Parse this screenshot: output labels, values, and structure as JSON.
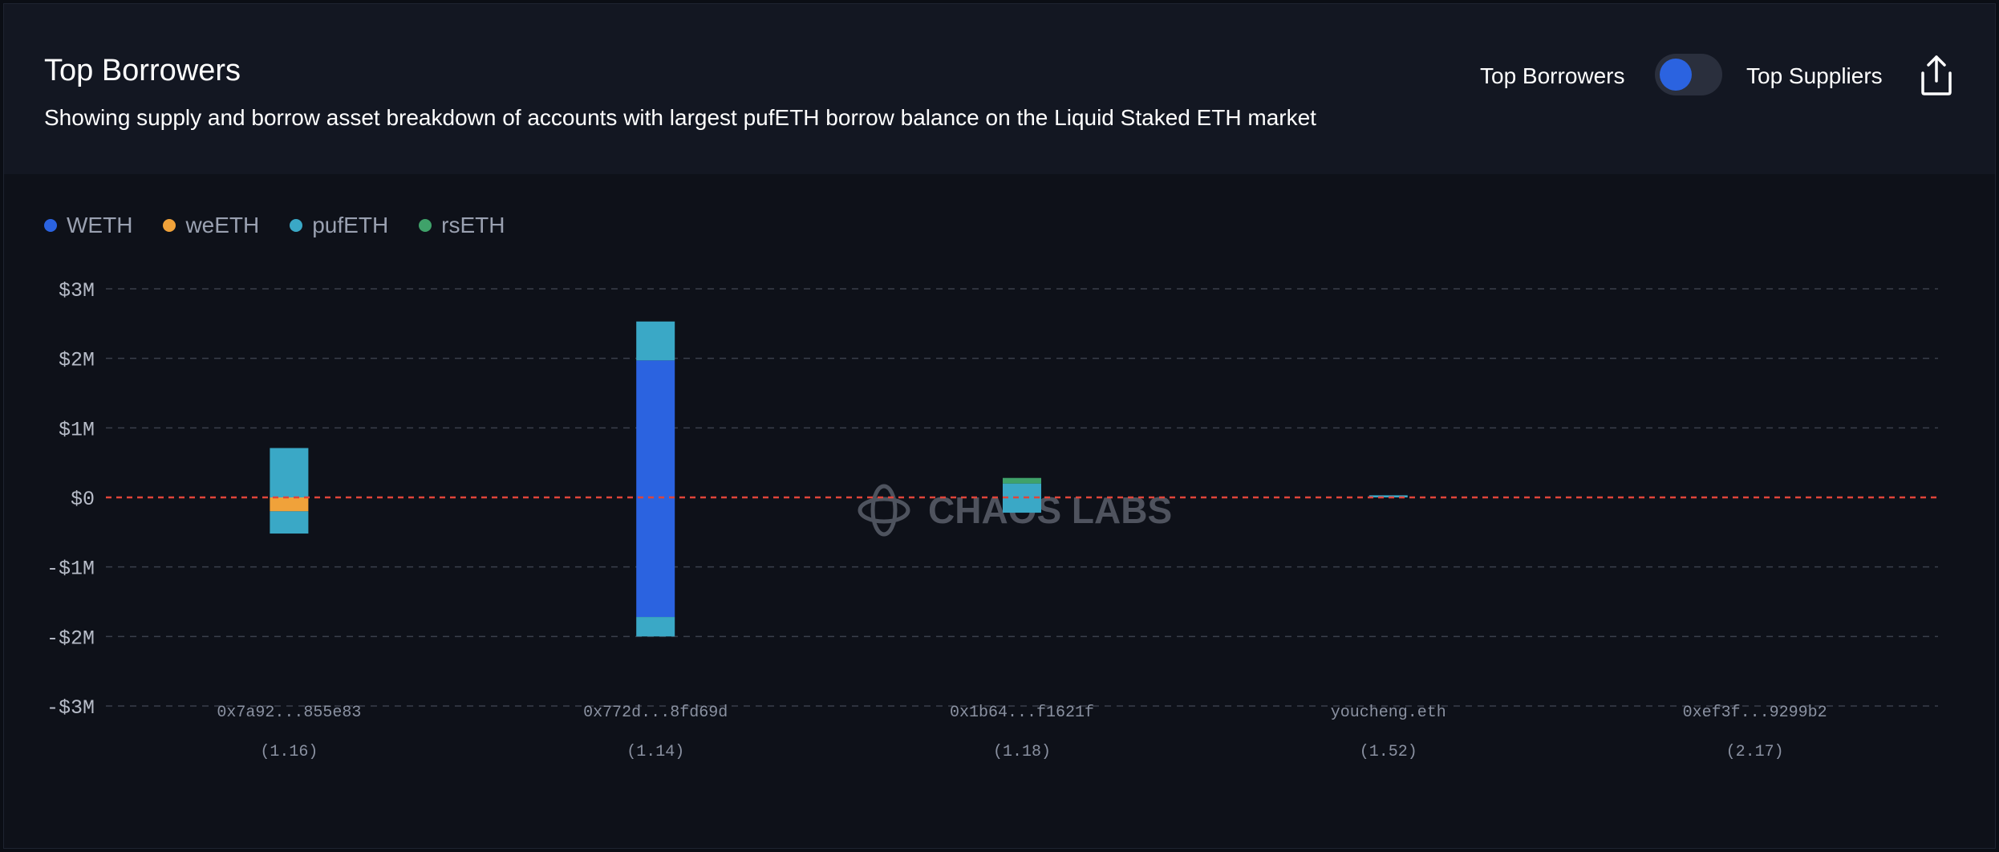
{
  "header": {
    "title": "Top Borrowers",
    "subtitle": "Showing supply and borrow asset breakdown of accounts with largest pufETH borrow balance on the Liquid Staked ETH market",
    "toggle": {
      "left_label": "Top Borrowers",
      "right_label": "Top Suppliers",
      "active": "Top Borrowers"
    },
    "share_icon": "share-icon"
  },
  "watermark": "CHAOS LABS",
  "chart_data": {
    "type": "bar",
    "stacked": true,
    "title": "",
    "xlabel": "",
    "ylabel": "",
    "ylim": [
      -3000000,
      3000000
    ],
    "y_ticks": [
      {
        "value": 3000000,
        "label": "$3M"
      },
      {
        "value": 2000000,
        "label": "$2M"
      },
      {
        "value": 1000000,
        "label": "$1M"
      },
      {
        "value": 0,
        "label": "$0"
      },
      {
        "value": -1000000,
        "label": "-$1M"
      },
      {
        "value": -2000000,
        "label": "-$2M"
      },
      {
        "value": -3000000,
        "label": "-$3M"
      }
    ],
    "grid": true,
    "zero_line": {
      "color": "#e0443a",
      "style": "dashed"
    },
    "legend_position": "top-left",
    "categories": [
      "0x7a92...855e83",
      "0x772d...8fd69d",
      "0x1b64...f1621f",
      "youcheng.eth",
      "0xef3f...9299b2"
    ],
    "category_sublabels": [
      "(1.16)",
      "(1.14)",
      "(1.18)",
      "(1.52)",
      "(2.17)"
    ],
    "series": [
      {
        "name": "WETH",
        "color": "#2b63e0",
        "values": [
          0,
          1970000,
          0,
          0,
          0
        ],
        "borrow_values": [
          0,
          -1720000,
          0,
          0,
          0
        ]
      },
      {
        "name": "weETH",
        "color": "#f0a23a",
        "values": [
          0,
          0,
          0,
          0,
          0
        ],
        "borrow_values": [
          -200000,
          0,
          0,
          0,
          0
        ]
      },
      {
        "name": "pufETH",
        "color": "#3aa8c6",
        "values": [
          710000,
          560000,
          200000,
          30000,
          0
        ],
        "borrow_values": [
          -320000,
          -280000,
          -220000,
          0,
          0
        ]
      },
      {
        "name": "rsETH",
        "color": "#3fa26a",
        "values": [
          0,
          0,
          80000,
          0,
          0
        ],
        "borrow_values": [
          0,
          0,
          0,
          0,
          0
        ]
      }
    ]
  }
}
